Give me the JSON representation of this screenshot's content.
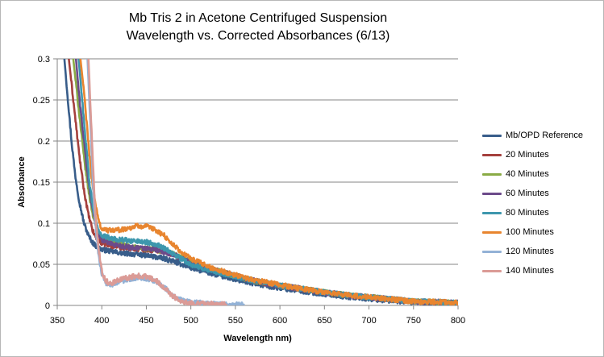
{
  "chart_data": {
    "type": "line",
    "title_line1": "Mb Tris 2 in Acetone Centrifuged Suspension",
    "title_line2": "Wavelength vs. Corrected Absorbances (6/13)",
    "xlabel": "Wavelength nm)",
    "ylabel": "Absorbance",
    "xlim": [
      350,
      800
    ],
    "ylim": [
      0,
      0.3
    ],
    "x_ticks": [
      "350",
      "400",
      "450",
      "500",
      "550",
      "600",
      "650",
      "700",
      "750",
      "800"
    ],
    "y_ticks": [
      "0",
      "0.05",
      "0.1",
      "0.15",
      "0.2",
      "0.25",
      "0.3"
    ],
    "grid": "horizontal",
    "legend_position": "right",
    "series": [
      {
        "name": "Mb/OPD Reference",
        "color": "#385d8a",
        "x": [
          358,
          362,
          366,
          370,
          375,
          380,
          385,
          390,
          395,
          400,
          410,
          420,
          430,
          440,
          450,
          460,
          470,
          480,
          490,
          500,
          520,
          540,
          560,
          580,
          600,
          620,
          650,
          680,
          700,
          720,
          750,
          780,
          800
        ],
        "y": [
          0.3,
          0.25,
          0.2,
          0.16,
          0.125,
          0.1,
          0.085,
          0.076,
          0.071,
          0.068,
          0.066,
          0.064,
          0.063,
          0.062,
          0.061,
          0.059,
          0.057,
          0.054,
          0.05,
          0.046,
          0.04,
          0.034,
          0.029,
          0.025,
          0.021,
          0.018,
          0.014,
          0.01,
          0.008,
          0.006,
          0.004,
          0.003,
          0.003
        ]
      },
      {
        "name": "20 Minutes",
        "color": "#a5403d",
        "x": [
          363,
          367,
          371,
          375,
          380,
          385,
          390,
          395,
          400,
          410,
          420,
          430,
          440,
          450,
          460,
          470,
          480,
          490,
          500,
          520,
          540,
          560,
          580,
          600,
          620,
          650,
          680,
          700,
          720,
          750,
          780,
          800
        ],
        "y": [
          0.3,
          0.26,
          0.22,
          0.18,
          0.14,
          0.11,
          0.09,
          0.08,
          0.076,
          0.073,
          0.071,
          0.07,
          0.069,
          0.068,
          0.067,
          0.066,
          0.062,
          0.058,
          0.053,
          0.045,
          0.039,
          0.033,
          0.028,
          0.024,
          0.021,
          0.016,
          0.012,
          0.01,
          0.008,
          0.005,
          0.004,
          0.003
        ]
      },
      {
        "name": "40 Minutes",
        "color": "#8aab45",
        "x": [
          368,
          372,
          376,
          380,
          385,
          390,
          395,
          400,
          410,
          420,
          430,
          440,
          450,
          460,
          470,
          480,
          490,
          500,
          520,
          540,
          560,
          580,
          600,
          620,
          650,
          680,
          700,
          720,
          750,
          780,
          800
        ],
        "y": [
          0.3,
          0.26,
          0.22,
          0.18,
          0.14,
          0.11,
          0.09,
          0.082,
          0.078,
          0.075,
          0.072,
          0.07,
          0.069,
          0.068,
          0.066,
          0.063,
          0.058,
          0.053,
          0.045,
          0.039,
          0.033,
          0.028,
          0.024,
          0.021,
          0.016,
          0.012,
          0.01,
          0.008,
          0.005,
          0.004,
          0.003
        ]
      },
      {
        "name": "60 Minutes",
        "color": "#6c4a8a",
        "x": [
          371,
          375,
          380,
          385,
          390,
          395,
          400,
          410,
          420,
          430,
          440,
          450,
          460,
          470,
          480,
          490,
          500,
          520,
          540,
          560,
          580,
          600,
          620,
          650,
          680,
          700,
          720,
          750,
          780,
          800
        ],
        "y": [
          0.3,
          0.25,
          0.2,
          0.15,
          0.115,
          0.09,
          0.08,
          0.075,
          0.073,
          0.071,
          0.07,
          0.069,
          0.068,
          0.065,
          0.062,
          0.057,
          0.052,
          0.045,
          0.039,
          0.033,
          0.028,
          0.024,
          0.021,
          0.016,
          0.012,
          0.01,
          0.008,
          0.005,
          0.004,
          0.003
        ]
      },
      {
        "name": "80 Minutes",
        "color": "#3d97ad",
        "x": [
          374,
          378,
          382,
          386,
          390,
          395,
          400,
          410,
          420,
          430,
          440,
          450,
          460,
          470,
          480,
          490,
          500,
          520,
          540,
          560,
          580,
          600,
          620,
          650,
          680,
          700,
          720,
          750,
          780,
          800
        ],
        "y": [
          0.3,
          0.25,
          0.2,
          0.15,
          0.12,
          0.095,
          0.085,
          0.082,
          0.08,
          0.079,
          0.078,
          0.077,
          0.075,
          0.07,
          0.063,
          0.056,
          0.05,
          0.043,
          0.038,
          0.033,
          0.028,
          0.024,
          0.021,
          0.016,
          0.012,
          0.01,
          0.008,
          0.005,
          0.004,
          0.003
        ]
      },
      {
        "name": "100 Minutes",
        "color": "#e8852f",
        "x": [
          376,
          380,
          384,
          388,
          392,
          396,
          400,
          410,
          420,
          430,
          440,
          450,
          460,
          470,
          480,
          490,
          500,
          520,
          540,
          560,
          580,
          600,
          620,
          650,
          680,
          700,
          720,
          750,
          780,
          800
        ],
        "y": [
          0.3,
          0.26,
          0.21,
          0.16,
          0.13,
          0.105,
          0.093,
          0.091,
          0.092,
          0.094,
          0.097,
          0.096,
          0.092,
          0.085,
          0.074,
          0.064,
          0.057,
          0.047,
          0.04,
          0.034,
          0.029,
          0.025,
          0.021,
          0.016,
          0.012,
          0.01,
          0.008,
          0.005,
          0.004,
          0.003
        ]
      },
      {
        "name": "120 Minutes",
        "color": "#93b2d6",
        "x": [
          384,
          386,
          388,
          390,
          392,
          394,
          396,
          398,
          400,
          403,
          406,
          410,
          420,
          430,
          440,
          450,
          460,
          470,
          480,
          490,
          500,
          520,
          540,
          560
        ],
        "y": [
          0.3,
          0.25,
          0.2,
          0.15,
          0.11,
          0.085,
          0.065,
          0.05,
          0.038,
          0.03,
          0.026,
          0.025,
          0.029,
          0.032,
          0.034,
          0.033,
          0.03,
          0.022,
          0.012,
          0.006,
          0.004,
          0.002,
          0.001,
          0.001
        ]
      },
      {
        "name": "140 Minutes",
        "color": "#db9b96",
        "x": [
          385,
          387,
          389,
          391,
          393,
          395,
          397,
          399,
          401,
          404,
          407,
          410,
          420,
          430,
          440,
          450,
          460,
          470,
          480,
          490,
          500,
          520,
          540
        ],
        "y": [
          0.3,
          0.25,
          0.2,
          0.15,
          0.11,
          0.085,
          0.065,
          0.05,
          0.038,
          0.031,
          0.028,
          0.027,
          0.031,
          0.034,
          0.036,
          0.035,
          0.031,
          0.022,
          0.011,
          0.005,
          0.003,
          0.002,
          0.001
        ]
      }
    ]
  }
}
